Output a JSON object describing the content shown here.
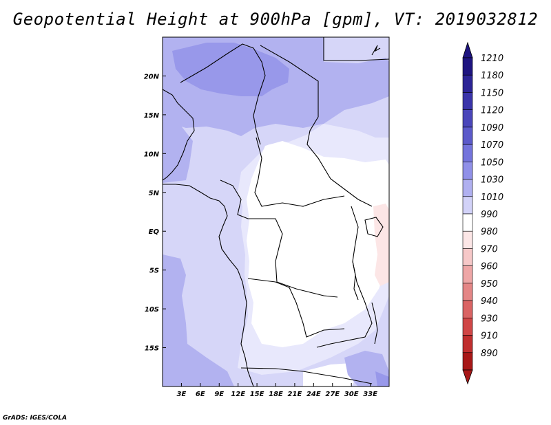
{
  "title": "Geopotential Height at 900hPa [gpm], VT: 2019032812",
  "credit": "GrADS: IGES/COLA",
  "map": {
    "x_range": [
      0,
      36
    ],
    "y_range": [
      -20,
      25
    ],
    "x_ticks": [
      {
        "value": 3,
        "label": "3E"
      },
      {
        "value": 6,
        "label": "6E"
      },
      {
        "value": 9,
        "label": "9E"
      },
      {
        "value": 12,
        "label": "12E"
      },
      {
        "value": 15,
        "label": "15E"
      },
      {
        "value": 18,
        "label": "18E"
      },
      {
        "value": 21,
        "label": "21E"
      },
      {
        "value": 24,
        "label": "24E"
      },
      {
        "value": 27,
        "label": "27E"
      },
      {
        "value": 30,
        "label": "30E"
      },
      {
        "value": 33,
        "label": "33E"
      }
    ],
    "y_ticks": [
      {
        "value": 20,
        "label": "20N"
      },
      {
        "value": 15,
        "label": "15N"
      },
      {
        "value": 10,
        "label": "10N"
      },
      {
        "value": 5,
        "label": "5N"
      },
      {
        "value": 0,
        "label": "EQ"
      },
      {
        "value": -5,
        "label": "5S"
      },
      {
        "value": -10,
        "label": "10S"
      },
      {
        "value": -15,
        "label": "15S"
      }
    ]
  },
  "colorbar": {
    "levels": [
      "1210",
      "1180",
      "1150",
      "1120",
      "1090",
      "1070",
      "1050",
      "1030",
      "1010",
      "990",
      "980",
      "970",
      "960",
      "950",
      "940",
      "930",
      "910",
      "890"
    ],
    "colors": [
      "#1e1480",
      "#2c2496",
      "#3a34aa",
      "#4a46ba",
      "#5c5aca",
      "#7474dc",
      "#9090e8",
      "#b0b0f0",
      "#d2d2f8",
      "#ffffff",
      "#fce6e6",
      "#f6c8c8",
      "#eea6a6",
      "#e48686",
      "#da6464",
      "#d04646",
      "#c02e2e",
      "#a81818"
    ]
  }
}
